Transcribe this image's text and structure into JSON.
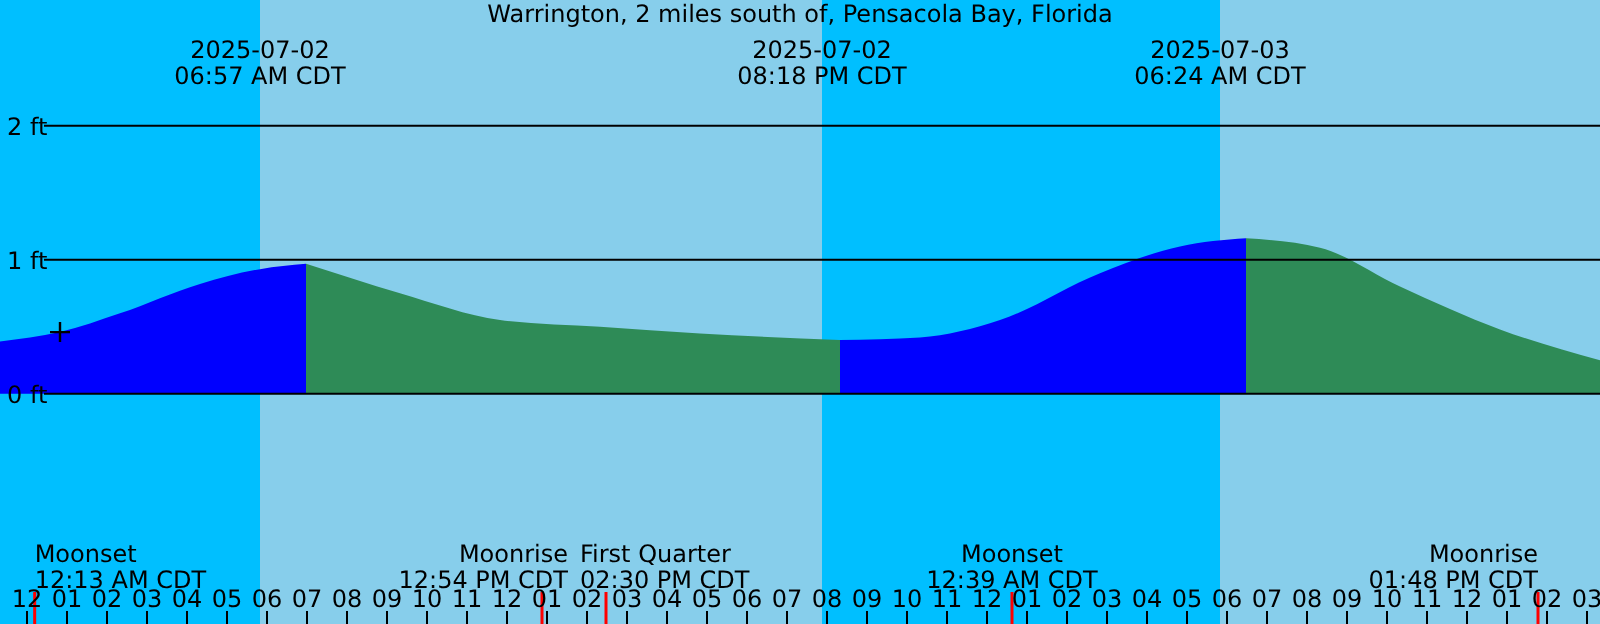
{
  "chart_data": {
    "type": "area",
    "title": "Warrington, 2 miles south of, Pensacola Bay, Florida",
    "xlim": [
      "2025-07-01T23:21",
      "2025-07-03T15:21"
    ],
    "xticks": [
      {
        "value": "2025-07-02T00:00",
        "label": "12"
      },
      {
        "value": "2025-07-02T01:00",
        "label": "01"
      },
      {
        "value": "2025-07-02T02:00",
        "label": "02"
      },
      {
        "value": "2025-07-02T03:00",
        "label": "03"
      },
      {
        "value": "2025-07-02T04:00",
        "label": "04"
      },
      {
        "value": "2025-07-02T05:00",
        "label": "05"
      },
      {
        "value": "2025-07-02T06:00",
        "label": "06"
      },
      {
        "value": "2025-07-02T07:00",
        "label": "07"
      },
      {
        "value": "2025-07-02T08:00",
        "label": "08"
      },
      {
        "value": "2025-07-02T09:00",
        "label": "09"
      },
      {
        "value": "2025-07-02T10:00",
        "label": "10"
      },
      {
        "value": "2025-07-02T11:00",
        "label": "11"
      },
      {
        "value": "2025-07-02T12:00",
        "label": "12"
      },
      {
        "value": "2025-07-02T13:00",
        "label": "01"
      },
      {
        "value": "2025-07-02T14:00",
        "label": "02"
      },
      {
        "value": "2025-07-02T15:00",
        "label": "03"
      },
      {
        "value": "2025-07-02T16:00",
        "label": "04"
      },
      {
        "value": "2025-07-02T17:00",
        "label": "05"
      },
      {
        "value": "2025-07-02T18:00",
        "label": "06"
      },
      {
        "value": "2025-07-02T19:00",
        "label": "07"
      },
      {
        "value": "2025-07-02T20:00",
        "label": "08"
      },
      {
        "value": "2025-07-02T21:00",
        "label": "09"
      },
      {
        "value": "2025-07-02T22:00",
        "label": "10"
      },
      {
        "value": "2025-07-02T23:00",
        "label": "11"
      },
      {
        "value": "2025-07-03T00:00",
        "label": "12"
      },
      {
        "value": "2025-07-03T01:00",
        "label": "01"
      },
      {
        "value": "2025-07-03T02:00",
        "label": "02"
      },
      {
        "value": "2025-07-03T03:00",
        "label": "03"
      },
      {
        "value": "2025-07-03T04:00",
        "label": "04"
      },
      {
        "value": "2025-07-03T05:00",
        "label": "05"
      },
      {
        "value": "2025-07-03T06:00",
        "label": "06"
      },
      {
        "value": "2025-07-03T07:00",
        "label": "07"
      },
      {
        "value": "2025-07-03T08:00",
        "label": "08"
      },
      {
        "value": "2025-07-03T09:00",
        "label": "09"
      },
      {
        "value": "2025-07-03T10:00",
        "label": "10"
      },
      {
        "value": "2025-07-03T11:00",
        "label": "11"
      },
      {
        "value": "2025-07-03T12:00",
        "label": "12"
      },
      {
        "value": "2025-07-03T13:00",
        "label": "01"
      },
      {
        "value": "2025-07-03T14:00",
        "label": "02"
      },
      {
        "value": "2025-07-03T15:00",
        "label": "03"
      }
    ],
    "ylim": [
      -1.72,
      2.94
    ],
    "yticks": [
      {
        "value": 0,
        "label": "0 ft"
      },
      {
        "value": 1,
        "label": "1 ft"
      },
      {
        "value": 2,
        "label": "2 ft"
      }
    ],
    "grid": "y",
    "series": [
      {
        "color": "#0000ff",
        "x": [
          "2025-07-01T23:21",
          "2025-07-02T00:51",
          "2025-07-02T02:21",
          "2025-07-02T04:21",
          "2025-07-02T05:51",
          "2025-07-02T07:00"
        ],
        "values": [
          0.39,
          0.46,
          0.6,
          0.82,
          0.93,
          0.97
        ]
      },
      {
        "color": "#2e8b57",
        "x": [
          "2025-07-02T07:00",
          "2025-07-02T09:21",
          "2025-07-02T11:51",
          "2025-07-02T14:21",
          "2025-07-02T16:51",
          "2025-07-02T20:21"
        ],
        "values": [
          0.97,
          0.75,
          0.55,
          0.5,
          0.45,
          0.4
        ]
      },
      {
        "color": "#0000ff",
        "x": [
          "2025-07-02T20:21",
          "2025-07-02T22:21",
          "2025-07-03T00:21",
          "2025-07-03T02:51",
          "2025-07-03T04:51",
          "2025-07-03T06:30"
        ],
        "values": [
          0.4,
          0.42,
          0.55,
          0.9,
          1.1,
          1.16
        ]
      },
      {
        "color": "#2e8b57",
        "x": [
          "2025-07-03T06:30",
          "2025-07-03T08:21",
          "2025-07-03T10:21",
          "2025-07-03T12:51",
          "2025-07-03T15:21"
        ],
        "values": [
          1.16,
          1.09,
          0.8,
          0.48,
          0.25
        ]
      },
      {
        "type": "scatter",
        "color": "#000000",
        "marker": "cross",
        "x": [
          "2025-07-02T00:51"
        ],
        "values": [
          0.46
        ]
      }
    ],
    "bands": [
      {
        "axis": "x",
        "from": "2025-07-01T23:21",
        "to": "2025-07-02T05:51",
        "color": "#00bfff",
        "label": "2025-07-02\n06:57 AM CDT"
      },
      {
        "axis": "x",
        "from": "2025-07-02T05:51",
        "to": "2025-07-02T19:54",
        "color": "#87ceeb",
        "label": "2025-07-02\n08:18 PM CDT"
      },
      {
        "axis": "x",
        "from": "2025-07-02T19:54",
        "to": "2025-07-03T05:51",
        "color": "#00bfff",
        "label": "2025-07-03\n06:24 AM CDT"
      },
      {
        "axis": "x",
        "from": "2025-07-03T05:51",
        "to": "2025-07-03T15:21",
        "color": "#87ceeb"
      }
    ],
    "ref_lines": [
      {
        "axis": "x",
        "value": "2025-07-02T00:13",
        "label": "Moonset\n12:13 AM CDT",
        "color": "#ff0000"
      },
      {
        "axis": "x",
        "value": "2025-07-02T12:54",
        "label": "Moonrise\n12:54 PM CDT",
        "color": "#ff0000"
      },
      {
        "axis": "x",
        "value": "2025-07-02T14:30",
        "label": "First Quarter\n02:30 PM CDT",
        "color": "#ff0000"
      },
      {
        "axis": "x",
        "value": "2025-07-03T00:39",
        "label": "Moonset\n12:39 AM CDT",
        "color": "#ff0000"
      },
      {
        "axis": "x",
        "value": "2025-07-03T13:48",
        "label": "Moonrise\n01:48 PM CDT",
        "color": "#ff0000"
      }
    ]
  }
}
